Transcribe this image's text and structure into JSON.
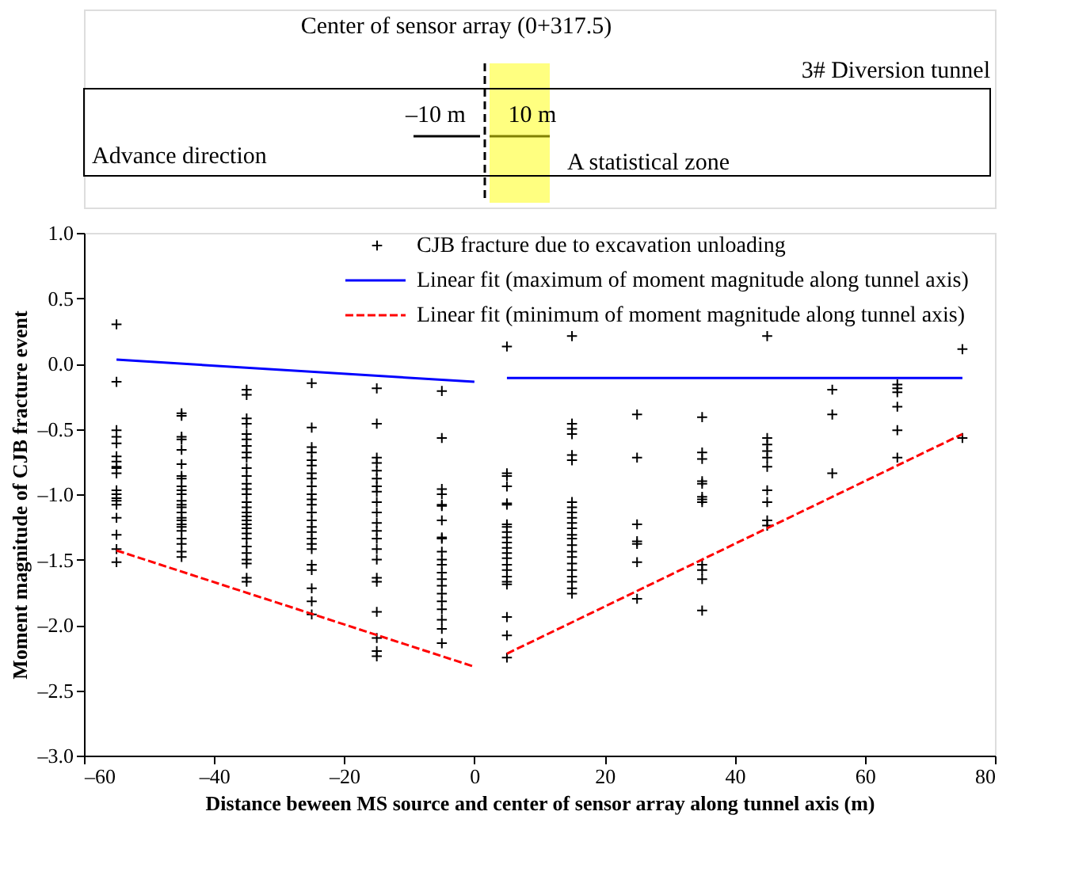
{
  "chart_data": {
    "type": "scatter",
    "xlabel": "Distance beween MS source and center of sensor array along tunnel axis (m)",
    "ylabel": "Moment magnitude of CJB fracture event",
    "xlim": [
      -60,
      80
    ],
    "xticks": [
      {
        "value": -60,
        "label": "–60"
      },
      {
        "value": -40,
        "label": "–40"
      },
      {
        "value": -20,
        "label": "–20"
      },
      0,
      20,
      40,
      60,
      80
    ],
    "ylim": [
      -3.0,
      1.0
    ],
    "yticks": [
      {
        "value": -3.0,
        "label": "–3.0"
      },
      {
        "value": -2.5,
        "label": "–2.5"
      },
      {
        "value": -2.0,
        "label": "–2.0"
      },
      {
        "value": -1.5,
        "label": "–1.5"
      },
      {
        "value": -1.0,
        "label": "–1.0"
      },
      {
        "value": -0.5,
        "label": "–0.5"
      },
      {
        "value": 0,
        "label": "0.0"
      },
      {
        "value": 0.5,
        "label": "0.5"
      },
      {
        "value": 1.0,
        "label": "1.0"
      }
    ],
    "grid": false,
    "legend": "top right",
    "annotations": [
      "Center of sensor array (0+317.5)",
      "3# Diversion tunnel",
      "–10  m",
      "10 m",
      "Advance direction",
      "A statistical zone"
    ],
    "series": [
      {
        "name": "CJB fracture due to excavation unloading",
        "type": "scatter",
        "marker": "cross",
        "color": "#000000",
        "x": [
          -55,
          -55,
          -55,
          -55,
          -55,
          -55,
          -55,
          -55,
          -55,
          -55,
          -55,
          -55,
          -55,
          -55,
          -55,
          -55,
          -55,
          -55,
          -55,
          -45,
          -45,
          -45,
          -45,
          -45,
          -45,
          -45,
          -45,
          -45,
          -45,
          -45,
          -45,
          -45,
          -45,
          -45,
          -45,
          -45,
          -45,
          -45,
          -45,
          -45,
          -45,
          -45,
          -45,
          -35,
          -35,
          -35,
          -35,
          -35,
          -35,
          -35,
          -35,
          -35,
          -35,
          -35,
          -35,
          -35,
          -35,
          -35,
          -35,
          -35,
          -35,
          -35,
          -35,
          -35,
          -35,
          -35,
          -35,
          -35,
          -35,
          -35,
          -35,
          -35,
          -25,
          -25,
          -25,
          -25,
          -25,
          -25,
          -25,
          -25,
          -25,
          -25,
          -25,
          -25,
          -25,
          -25,
          -25,
          -25,
          -25,
          -25,
          -25,
          -25,
          -25,
          -25,
          -25,
          -25,
          -15,
          -15,
          -15,
          -15,
          -15,
          -15,
          -15,
          -15,
          -15,
          -15,
          -15,
          -15,
          -15,
          -15,
          -15,
          -15,
          -15,
          -15,
          -15,
          -15,
          -15,
          -5,
          -5,
          -5,
          -5,
          -5,
          -5,
          -5,
          -5,
          -5,
          -5,
          -5,
          -5,
          -5,
          -5,
          -5,
          -5,
          -5,
          -5,
          -5,
          -5,
          -5,
          5,
          5,
          5,
          5,
          5,
          5,
          5,
          5,
          5,
          5,
          5,
          5,
          5,
          5,
          5,
          5,
          5,
          5,
          5,
          5,
          5,
          5,
          15,
          15,
          15,
          15,
          15,
          15,
          15,
          15,
          15,
          15,
          15,
          15,
          15,
          15,
          15,
          15,
          15,
          15,
          15,
          15,
          15,
          15,
          15,
          25,
          25,
          25,
          25,
          25,
          25,
          25,
          35,
          35,
          35,
          35,
          35,
          35,
          35,
          35,
          35,
          35,
          35,
          35,
          45,
          45,
          45,
          45,
          45,
          45,
          45,
          45,
          45,
          45,
          55,
          55,
          55,
          65,
          65,
          65,
          65,
          65,
          65,
          75,
          75
        ],
        "values": [
          0.3,
          -0.14,
          -0.51,
          -0.56,
          -0.61,
          -0.71,
          -0.75,
          -0.79,
          -0.8,
          -0.84,
          -0.97,
          -1.0,
          -1.03,
          -1.05,
          -1.08,
          -1.18,
          -1.31,
          -1.42,
          -1.52,
          -0.38,
          -0.4,
          -0.56,
          -0.58,
          -0.66,
          -0.77,
          -0.86,
          -0.88,
          -0.94,
          -0.97,
          -1.0,
          -1.05,
          -1.08,
          -1.1,
          -1.14,
          -1.18,
          -1.2,
          -1.23,
          -1.25,
          -1.28,
          -1.34,
          -1.38,
          -1.44,
          -1.48,
          -0.2,
          -0.24,
          -0.42,
          -0.46,
          -0.54,
          -0.58,
          -0.63,
          -0.68,
          -0.72,
          -0.8,
          -0.86,
          -0.92,
          -0.96,
          -1.0,
          -1.06,
          -1.1,
          -1.14,
          -1.17,
          -1.2,
          -1.23,
          -1.26,
          -1.3,
          -1.34,
          -1.4,
          -1.45,
          -1.5,
          -1.53,
          -1.64,
          -1.67,
          -0.15,
          -0.49,
          -0.64,
          -0.68,
          -0.74,
          -0.78,
          -0.84,
          -0.88,
          -0.94,
          -1.0,
          -1.04,
          -1.08,
          -1.14,
          -1.2,
          -1.25,
          -1.29,
          -1.34,
          -1.38,
          -1.42,
          -1.54,
          -1.58,
          -1.72,
          -1.82,
          -1.92,
          -0.19,
          -0.46,
          -0.72,
          -0.76,
          -0.82,
          -0.88,
          -0.94,
          -0.98,
          -1.06,
          -1.14,
          -1.22,
          -1.28,
          -1.34,
          -1.42,
          -1.5,
          -1.64,
          -1.67,
          -1.9,
          -2.1,
          -2.2,
          -2.24,
          -0.21,
          -0.57,
          -0.96,
          -1.0,
          -1.08,
          -1.09,
          -1.2,
          -1.33,
          -1.34,
          -1.44,
          -1.5,
          -1.54,
          -1.6,
          -1.65,
          -1.7,
          -1.76,
          -1.82,
          -1.88,
          -1.96,
          -2.03,
          -2.14,
          0.13,
          -0.84,
          -0.86,
          -0.94,
          -1.07,
          -1.08,
          -1.23,
          -1.25,
          -1.29,
          -1.33,
          -1.37,
          -1.41,
          -1.45,
          -1.49,
          -1.54,
          -1.58,
          -1.63,
          -1.67,
          -1.69,
          -1.94,
          -2.08,
          -2.25,
          0.21,
          -0.46,
          -0.5,
          -0.54,
          -0.7,
          -0.74,
          -1.06,
          -1.1,
          -1.14,
          -1.18,
          -1.22,
          -1.26,
          -1.31,
          -1.34,
          -1.39,
          -1.44,
          -1.48,
          -1.53,
          -1.58,
          -1.63,
          -1.67,
          -1.72,
          -1.76,
          -0.39,
          -0.72,
          -1.23,
          -1.36,
          -1.38,
          -1.52,
          -1.8,
          -0.41,
          -0.68,
          -0.73,
          -0.9,
          -0.92,
          -1.02,
          -1.04,
          -1.06,
          -1.54,
          -1.58,
          -1.65,
          -1.89,
          0.21,
          -0.57,
          -0.62,
          -0.67,
          -0.72,
          -0.79,
          -0.97,
          -1.06,
          -1.2,
          -1.24,
          -0.2,
          -0.39,
          -0.84,
          -0.16,
          -0.19,
          -0.22,
          -0.33,
          -0.51,
          -0.72,
          0.11,
          -0.57
        ]
      },
      {
        "name": "Linear fit (maximum of moment magnitude along tunnel axis)",
        "type": "line",
        "line_style": "solid",
        "color": "#0000ff",
        "x": [
          -55,
          0,
          null,
          5,
          75
        ],
        "values": [
          0.03,
          -0.14,
          null,
          -0.11,
          -0.11
        ]
      },
      {
        "name": "Linear fit (minimum of moment magnitude along tunnel axis)",
        "type": "line",
        "line_style": "dashed",
        "color": "#ff0000",
        "x": [
          -55,
          0,
          null,
          5,
          75
        ],
        "values": [
          -1.43,
          -2.32,
          null,
          -2.22,
          -0.54
        ]
      }
    ]
  }
}
